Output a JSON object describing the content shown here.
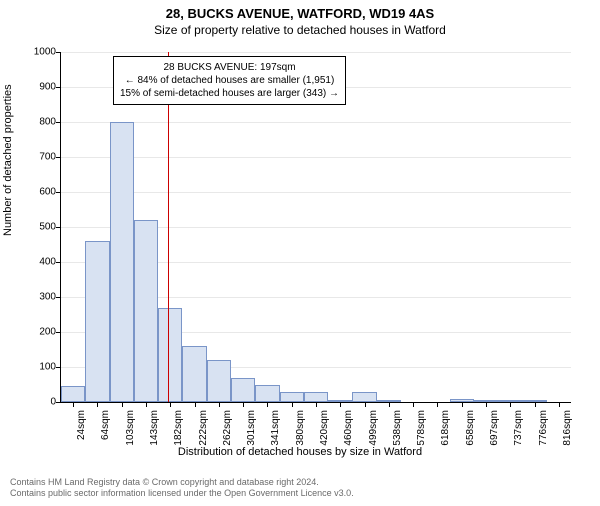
{
  "title_main": "28, BUCKS AVENUE, WATFORD, WD19 4AS",
  "title_sub": "Size of property relative to detached houses in Watford",
  "y_axis_label": "Number of detached properties",
  "x_axis_label": "Distribution of detached houses by size in Watford",
  "footer_line1": "Contains HM Land Registry data © Crown copyright and database right 2024.",
  "footer_line2": "Contains public sector information licensed under the Open Government Licence v3.0.",
  "chart": {
    "type": "histogram",
    "ylim": [
      0,
      1000
    ],
    "y_ticks": [
      0,
      100,
      200,
      300,
      400,
      500,
      600,
      700,
      800,
      900,
      1000
    ],
    "bar_fill": "#d8e2f2",
    "bar_border": "#7a95c8",
    "grid_color": "#e8e8e8",
    "background_color": "#ffffff",
    "ref_line_color": "#cc0000",
    "ref_line_x_index": 4.4,
    "bars": [
      {
        "label": "24sqm",
        "value": 45
      },
      {
        "label": "64sqm",
        "value": 460
      },
      {
        "label": "103sqm",
        "value": 800
      },
      {
        "label": "143sqm",
        "value": 520
      },
      {
        "label": "182sqm",
        "value": 270
      },
      {
        "label": "222sqm",
        "value": 160
      },
      {
        "label": "262sqm",
        "value": 120
      },
      {
        "label": "301sqm",
        "value": 70
      },
      {
        "label": "341sqm",
        "value": 50
      },
      {
        "label": "380sqm",
        "value": 30
      },
      {
        "label": "420sqm",
        "value": 30
      },
      {
        "label": "460sqm",
        "value": 5
      },
      {
        "label": "499sqm",
        "value": 30
      },
      {
        "label": "538sqm",
        "value": 5
      },
      {
        "label": "578sqm",
        "value": 0
      },
      {
        "label": "618sqm",
        "value": 0
      },
      {
        "label": "658sqm",
        "value": 10
      },
      {
        "label": "697sqm",
        "value": 5
      },
      {
        "label": "737sqm",
        "value": 5
      },
      {
        "label": "776sqm",
        "value": 5
      },
      {
        "label": "816sqm",
        "value": 0
      }
    ],
    "title_fontsize": 13,
    "sub_fontsize": 12,
    "axis_label_fontsize": 11,
    "tick_fontsize": 10,
    "annotation_fontsize": 10
  },
  "annotation": {
    "line1": "28 BUCKS AVENUE: 197sqm",
    "line2": "← 84% of detached houses are smaller (1,951)",
    "line3": "15% of semi-detached houses are larger (343) →",
    "border_color": "#000000",
    "background_color": "#ffffff"
  }
}
